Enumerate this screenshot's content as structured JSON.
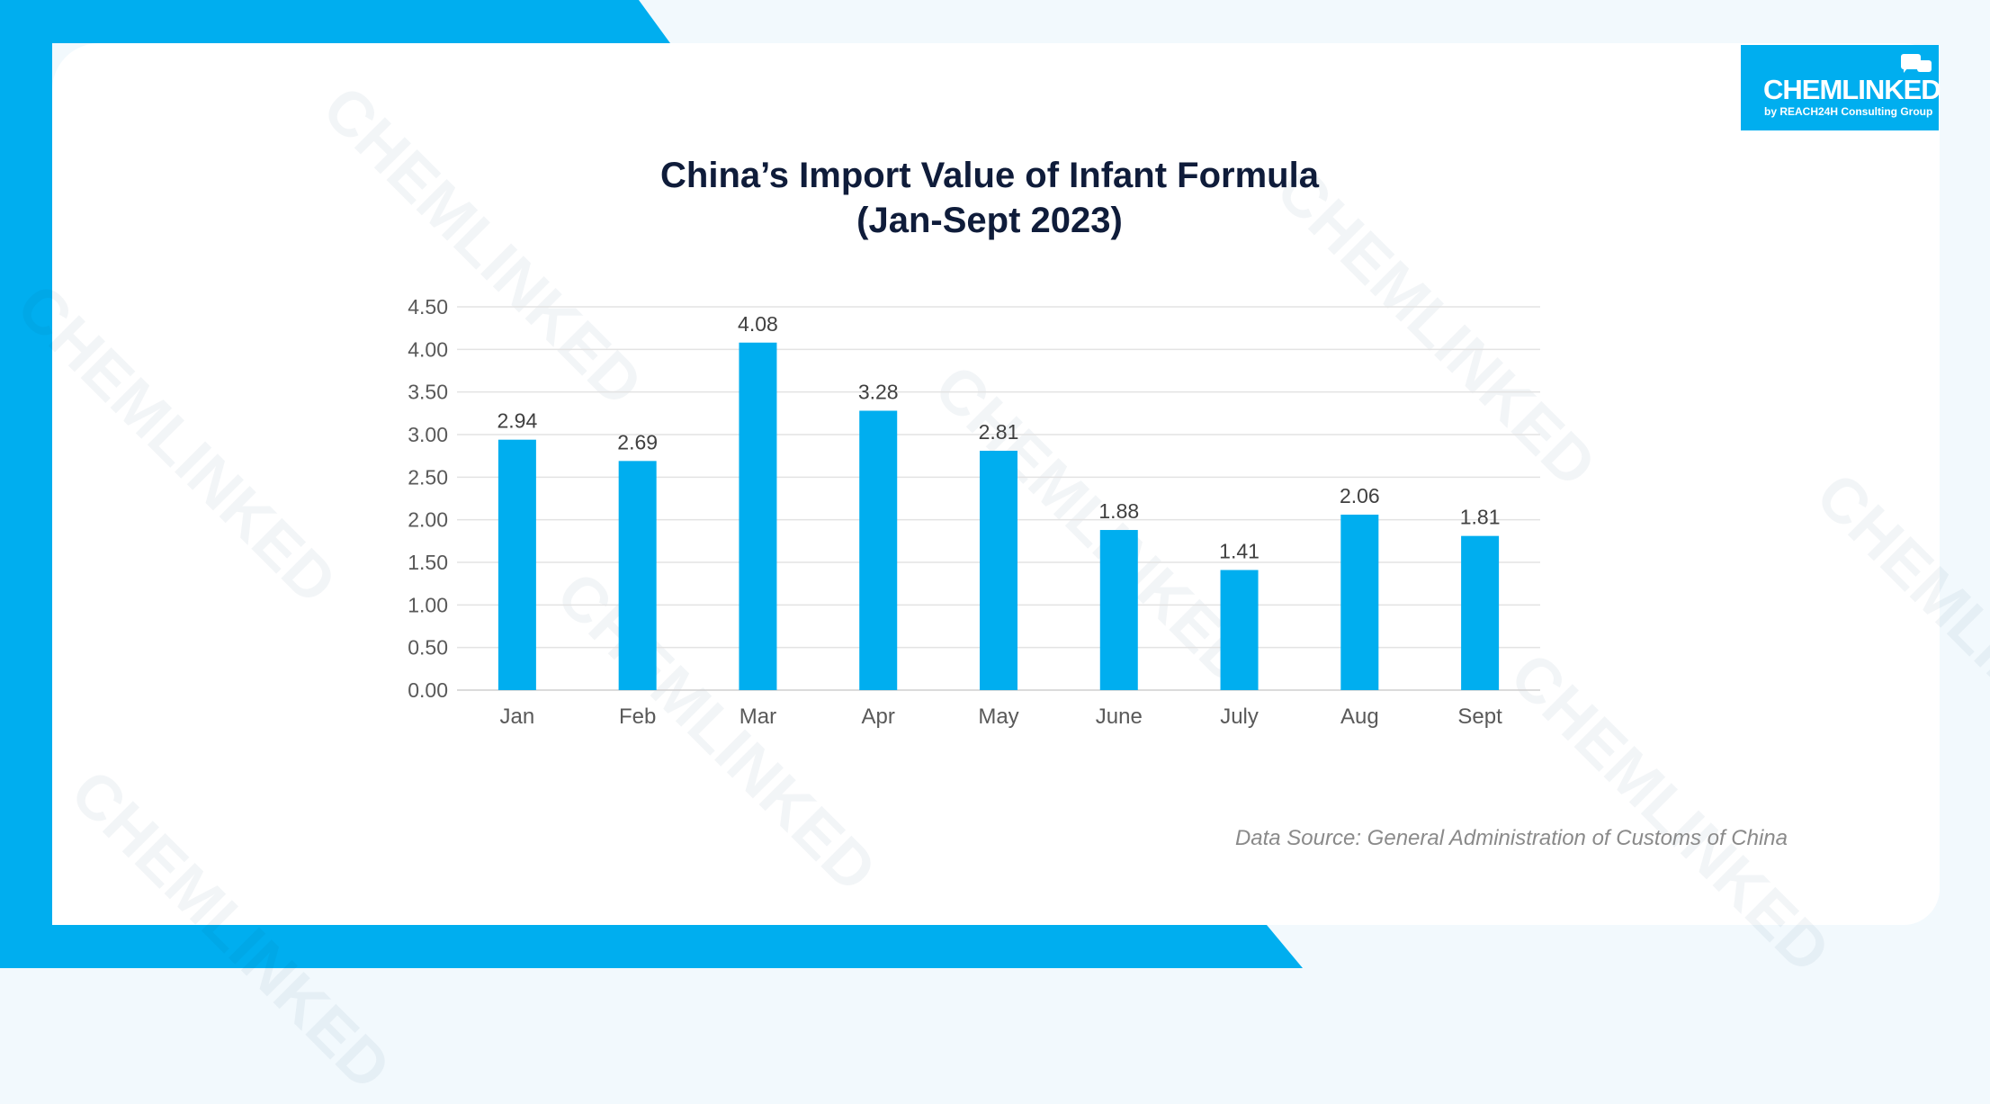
{
  "logo": {
    "name": "CHEMLINKED",
    "tagline": "by REACH24H Consulting Group"
  },
  "watermark": {
    "text": "CHEMLINKED"
  },
  "colors": {
    "accent": "#00aeef",
    "title": "#0f1c3a",
    "bar": "#00aeef",
    "background": "#f2f9fd"
  },
  "chart_data": {
    "type": "bar",
    "title": "China’s Import Value of Infant Formula",
    "subtitle": "(Jan-Sept 2023)",
    "categories": [
      "Jan",
      "Feb",
      "Mar",
      "Apr",
      "May",
      "June",
      "July",
      "Aug",
      "Sept"
    ],
    "values": [
      2.94,
      2.69,
      4.08,
      3.28,
      2.81,
      1.88,
      1.41,
      2.06,
      1.81
    ],
    "value_labels": [
      "2.94",
      "2.69",
      "4.08",
      "3.28",
      "2.81",
      "1.88",
      "1.41",
      "2.06",
      "1.81"
    ],
    "y_ticks": [
      "0.00",
      "0.50",
      "1.00",
      "1.50",
      "2.00",
      "2.50",
      "3.00",
      "3.50",
      "4.00",
      "4.50"
    ],
    "ylim": [
      0,
      4.5
    ],
    "xlabel": "",
    "ylabel": "",
    "grid": true,
    "legend": "none"
  },
  "source": "Data Source: General Administration of Customs of China"
}
